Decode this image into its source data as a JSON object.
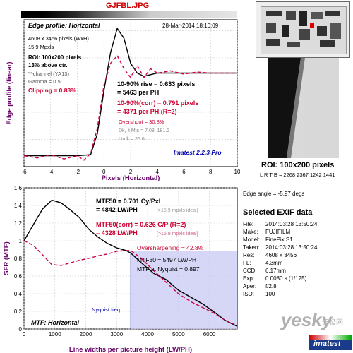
{
  "window_title": "GJFBL.JPG",
  "edge_chart": {
    "heading": "Edge profile: Horizontal",
    "timestamp": "28-Mar-2014 18:10:09",
    "image_size": "4608 x 3456 pixels (WxH)",
    "megapixels": "15.9 Mpxls",
    "roi_line1": "ROI: 100x200 pixels",
    "roi_line2": "13% above ctr.",
    "channel": "Y-channel  (YA13)",
    "gamma": "Gamma = 0.5",
    "clipping": "Clipping =  0.83%",
    "rise": "10-90% rise = 0.633 pixels",
    "rise_ph": "= 5463 per PH",
    "rise_corr": "10-90%(corr) = 0.791 pixels",
    "rise_corr_ph": "= 4371 per PH  (R=2)",
    "overshoot": "Overshoot = 30.8%",
    "dk": "Dk, lt Mts = 7.08, 181.2",
    "ltdk": "Lt/dk = 25.6",
    "version": "Imatest 2.2.3 Pro",
    "xlabel": "Pixels (Horizontal)",
    "ylabel": "Edge profile (linear)",
    "x_ticks": [
      "-6",
      "-4",
      "-2",
      "0",
      "2",
      "4",
      "6",
      "8",
      "10"
    ]
  },
  "roi_panel": {
    "title": "ROI: 100x200 pixels",
    "lrtb": "L R T B = 2268 2367  1242 1441",
    "edge_angle": "Edge angle = -5.97 degs"
  },
  "exif": {
    "title": "Selected EXIF data",
    "rows": [
      {
        "key": "File:",
        "value": "2014:03:28 13:50:24"
      },
      {
        "key": "Make:",
        "value": "FUJIFILM"
      },
      {
        "key": "Model:",
        "value": "FinePix S1"
      },
      {
        "key": "Taken:",
        "value": "2014:03:28 13:50:24"
      },
      {
        "key": "Res:",
        "value": "4608 x 3456"
      },
      {
        "key": "FL:",
        "value": "4.3mm"
      },
      {
        "key": "CCD:",
        "value": "6.17mm"
      },
      {
        "key": "Exp:",
        "value": "0.0080 s  (1/125)"
      },
      {
        "key": "Aper:",
        "value": "f/2.8"
      },
      {
        "key": "ISO:",
        "value": "100"
      }
    ]
  },
  "watermark": {
    "text": "yesky",
    "sub": "天极网",
    "badge": "imatest"
  },
  "mtf_chart": {
    "mtf50": "MTF50 = 0.701 Cy/Pxl",
    "mtf50_lw": "= 4842 LW/PH",
    "mtf50_note": "[>15.9 mpxls ideal]",
    "mtf50_corr": "MTF50(corr) = 0.626 C/P  (R=2)",
    "mtf50_corr_lw": "= 4328 LW/PH",
    "mtf50_corr_note": "[>15.9 mpxls ideal]",
    "oversharpening": "Oversharpening = 42.8%",
    "mtf30": "MTF30 = 5497 LW/PH",
    "mtf_nyquist": "MTF at Nyquist = 0.897",
    "nyquist_label": "Nyquist freq.",
    "footer": "MTF: Horizontal",
    "xlabel": "Line widths per picture height (LW/PH)",
    "ylabel": "SFR (MTF)",
    "x_ticks": [
      "0",
      "1000",
      "2000",
      "3000",
      "4000",
      "5000",
      "6000"
    ],
    "y_ticks": [
      "0",
      "0.2",
      "0.4",
      "0.6",
      "0.8",
      "1",
      "1.2",
      "1.4",
      "1.6"
    ]
  },
  "chart_data": [
    {
      "type": "line",
      "title": "Edge profile: Horizontal",
      "xlabel": "Pixels (Horizontal)",
      "ylabel": "Edge profile (linear)",
      "xlim": [
        -6,
        10
      ],
      "series": [
        {
          "style": "solid",
          "color": "#000000",
          "x": [
            -6,
            -4,
            -2,
            -1,
            -0.5,
            0,
            0.5,
            1,
            1.5,
            2,
            2.5,
            3,
            4,
            6,
            8,
            10
          ],
          "y": [
            0.1,
            0.1,
            0.1,
            0.11,
            0.3,
            0.7,
            1.05,
            1.27,
            1.18,
            0.95,
            0.86,
            0.83,
            0.86,
            0.86,
            0.86,
            0.86
          ]
        },
        {
          "style": "dashed",
          "color": "#cc0044",
          "x": [
            -6,
            -5,
            -4,
            -3,
            -2,
            -1.5,
            -1,
            -0.5,
            0,
            0.5,
            1,
            1.5,
            2,
            2.5,
            3,
            3.5,
            4,
            5,
            6,
            7,
            8,
            10
          ],
          "y": [
            0.1,
            0.08,
            0.11,
            0.07,
            0.1,
            0.06,
            0.12,
            0.35,
            0.75,
            0.95,
            1.02,
            0.9,
            0.82,
            0.93,
            0.82,
            0.9,
            0.86,
            0.88,
            0.85,
            0.87,
            0.86,
            0.86
          ]
        }
      ]
    },
    {
      "type": "line",
      "title": "MTF: Horizontal",
      "xlabel": "Line widths per picture height (LW/PH)",
      "ylabel": "SFR (MTF)",
      "xlim": [
        0,
        6900
      ],
      "ylim": [
        0,
        1.6
      ],
      "nyquist_x": 3456,
      "series": [
        {
          "style": "solid",
          "color": "#000000",
          "x": [
            0,
            300,
            600,
            900,
            1200,
            1500,
            1800,
            2100,
            2400,
            2700,
            3000,
            3300,
            3456,
            3800,
            4200,
            4600,
            5000,
            5400,
            5800,
            6200,
            6500,
            6900
          ],
          "y": [
            1.0,
            1.18,
            1.36,
            1.46,
            1.43,
            1.35,
            1.26,
            1.13,
            1.04,
            0.97,
            0.92,
            0.89,
            0.86,
            0.75,
            0.63,
            0.56,
            0.44,
            0.36,
            0.28,
            0.18,
            0.1,
            0.03
          ]
        },
        {
          "style": "dashed",
          "color": "#cc0044",
          "x": [
            0,
            300,
            600,
            900,
            1200,
            1500,
            1800,
            2100,
            2400,
            2700,
            3000,
            3300,
            3456,
            3800,
            4200,
            4600,
            5000,
            5400,
            5800,
            6200,
            6500,
            6900
          ],
          "y": [
            1.0,
            0.95,
            0.84,
            0.73,
            0.72,
            0.75,
            0.78,
            0.8,
            0.83,
            0.85,
            0.88,
            0.89,
            0.89,
            0.8,
            0.66,
            0.53,
            0.4,
            0.31,
            0.24,
            0.17,
            0.1,
            0.04
          ]
        }
      ]
    }
  ]
}
